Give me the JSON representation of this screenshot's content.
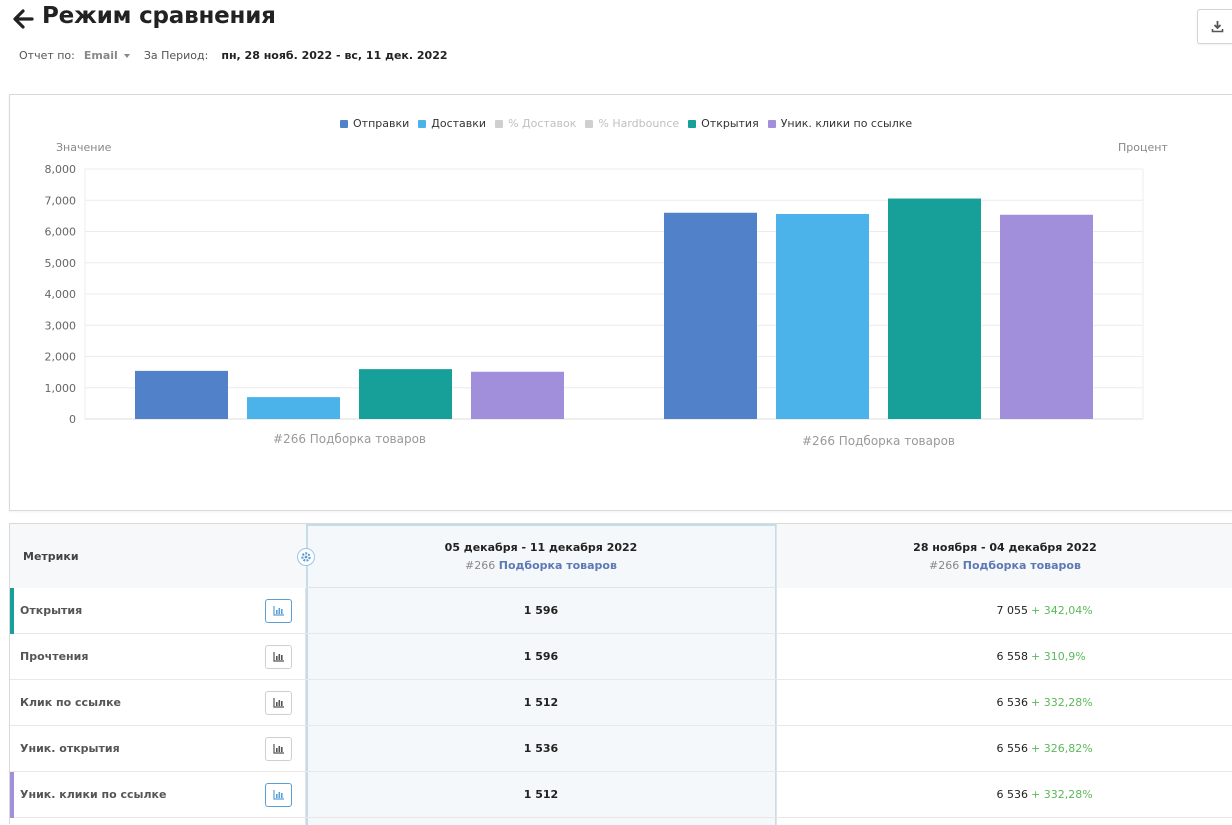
{
  "header": {
    "title": "Режим сравнения",
    "back_icon": "arrow-left-icon",
    "download_icon": "download-icon"
  },
  "filters": {
    "report_by_label": "Отчет по:",
    "report_by_value": "Email",
    "period_label": "За Период:",
    "period_value": "пн, 28 нояб. 2022 - вс, 11 дек. 2022"
  },
  "chart_data": {
    "type": "bar",
    "y_axis_title": "Значение",
    "y2_axis_title": "Процент",
    "ylim": [
      0,
      8000
    ],
    "yticks": [
      "8,000",
      "7,000",
      "6,000",
      "5,000",
      "4,000",
      "3,000",
      "2,000",
      "1,000",
      "0"
    ],
    "categories": [
      "#266 Подборка товаров",
      "#266 Подборка товаров"
    ],
    "legend": [
      {
        "name": "Отправки",
        "color": "#5181c8",
        "enabled": true
      },
      {
        "name": "Доставки",
        "color": "#4bb2ea",
        "enabled": true
      },
      {
        "name": "% Доставок",
        "color": "#cfcfcf",
        "enabled": false
      },
      {
        "name": "% Hardbounce",
        "color": "#cfcfcf",
        "enabled": false
      },
      {
        "name": "Открытия",
        "color": "#17a09a",
        "enabled": true
      },
      {
        "name": "Уник. клики по ссылке",
        "color": "#a18fdc",
        "enabled": true
      }
    ],
    "series": [
      {
        "name": "Отправки",
        "color": "#5181c8",
        "values": [
          1540,
          6600
        ]
      },
      {
        "name": "Доставки",
        "color": "#4bb2ea",
        "values": [
          700,
          6560
        ]
      },
      {
        "name": "Открытия",
        "color": "#17a09a",
        "values": [
          1596,
          7055
        ]
      },
      {
        "name": "Уник. клики по ссылке",
        "color": "#a18fdc",
        "values": [
          1512,
          6536
        ]
      }
    ]
  },
  "table": {
    "metrics_header": "Метрики",
    "settings_icon": "gear-icon",
    "columns": [
      {
        "date": "05 декабря - 11 декабря 2022",
        "id": "#266",
        "name": "Подборка товаров"
      },
      {
        "date": "28 ноября - 04 декабря 2022",
        "id": "#266",
        "name": "Подборка товаров"
      }
    ],
    "rows": [
      {
        "metric": "Открытия",
        "accent": "#17a09a",
        "a": "1 596",
        "b": "7 055",
        "diff": "+ 342,04%",
        "active": true
      },
      {
        "metric": "Прочтения",
        "accent": "",
        "a": "1 596",
        "b": "6 558",
        "diff": "+ 310,9%",
        "active": false
      },
      {
        "metric": "Клик по ссылке",
        "accent": "",
        "a": "1 512",
        "b": "6 536",
        "diff": "+ 332,28%",
        "active": false
      },
      {
        "metric": "Уник. открытия",
        "accent": "",
        "a": "1 536",
        "b": "6 556",
        "diff": "+ 326,82%",
        "active": false
      },
      {
        "metric": "Уник. клики по ссылке",
        "accent": "#a18fdc",
        "a": "1 512",
        "b": "6 536",
        "diff": "+ 332,28%",
        "active": true
      }
    ]
  }
}
